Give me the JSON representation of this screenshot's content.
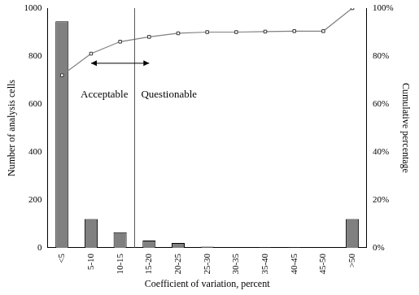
{
  "chart_data": {
    "type": "bar",
    "x_label": "Coefficient of variation, percent",
    "y_label": "Number of analysis cells",
    "y2_label": "Cumulative percentage",
    "categories": [
      "<5",
      "5-10",
      "10-15",
      "15-20",
      "20-25",
      "25-30",
      "30-35",
      "35-40",
      "40-45",
      "45-50",
      ">50"
    ],
    "series": [
      {
        "type": "bar",
        "color": "#808080",
        "values": [
          945,
          120,
          65,
          30,
          20,
          5,
          0,
          2,
          2,
          0,
          120
        ]
      },
      {
        "type": "line",
        "axis": "y2",
        "color": "#808080",
        "marker": "square",
        "values": [
          72,
          81,
          86,
          88,
          89.5,
          90,
          90,
          90.2,
          90.4,
          90.4,
          100
        ]
      }
    ],
    "ylim": [
      0,
      1000
    ],
    "yticks": [
      0,
      200,
      400,
      600,
      800,
      1000
    ],
    "y2lim": [
      0,
      100
    ],
    "y2ticks": [
      {
        "value": 0,
        "label": "0%"
      },
      {
        "value": 20,
        "label": "20%"
      },
      {
        "value": 40,
        "label": "40%"
      },
      {
        "value": 60,
        "label": "60%"
      },
      {
        "value": 80,
        "label": "80%"
      },
      {
        "value": 100,
        "label": "100%"
      }
    ],
    "annotations": [
      {
        "text": "Acceptable",
        "side": "left"
      },
      {
        "text": "Questionable",
        "side": "right"
      }
    ],
    "divider_between": [
      "10-15",
      "15-20"
    ],
    "grid": false
  }
}
